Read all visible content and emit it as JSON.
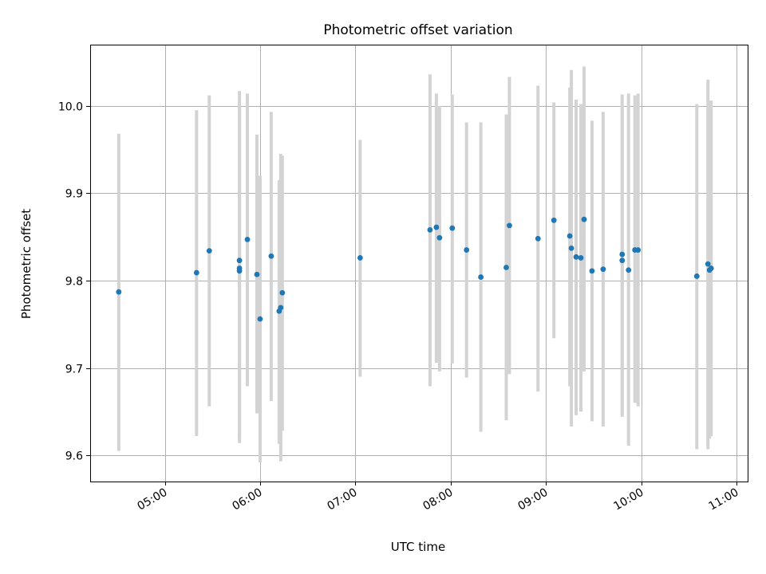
{
  "chart_data": {
    "type": "scatter",
    "title": "Photometric offset variation",
    "xlabel": "UTC time",
    "ylabel": "Photometric offset",
    "x_axis_type": "time",
    "xlim": [
      "04:13",
      "11:07"
    ],
    "ylim": [
      9.57,
      10.07
    ],
    "x_ticks": [
      "05:00",
      "06:00",
      "07:00",
      "08:00",
      "09:00",
      "10:00",
      "11:00"
    ],
    "y_ticks": [
      "9.6",
      "9.7",
      "9.8",
      "9.9",
      "10.0"
    ],
    "grid": true,
    "colors": {
      "points": "#1f77b4",
      "errorbars": "#d3d3d3",
      "grid": "#b0b0b0"
    },
    "series": [
      {
        "points": [
          {
            "x": "04:31",
            "y": 9.787,
            "lo": 9.605,
            "hi": 9.968
          },
          {
            "x": "05:20",
            "y": 9.809,
            "lo": 9.622,
            "hi": 9.995
          },
          {
            "x": "05:28",
            "y": 9.834,
            "lo": 9.656,
            "hi": 10.012
          },
          {
            "x": "05:47",
            "y": 9.823,
            "lo": 9.614,
            "hi": 10.017
          },
          {
            "x": "05:47",
            "y": 9.814,
            "lo": 9.62,
            "hi": 10.005
          },
          {
            "x": "05:47",
            "y": 9.811,
            "lo": 9.625,
            "hi": 9.998
          },
          {
            "x": "05:52",
            "y": 9.847,
            "lo": 9.679,
            "hi": 10.014
          },
          {
            "x": "05:58",
            "y": 9.807,
            "lo": 9.648,
            "hi": 9.967
          },
          {
            "x": "06:00",
            "y": 9.756,
            "lo": 9.592,
            "hi": 9.92
          },
          {
            "x": "06:07",
            "y": 9.828,
            "lo": 9.662,
            "hi": 9.993
          },
          {
            "x": "06:12",
            "y": 9.765,
            "lo": 9.613,
            "hi": 9.915
          },
          {
            "x": "06:13",
            "y": 9.769,
            "lo": 9.593,
            "hi": 9.945
          },
          {
            "x": "06:14",
            "y": 9.786,
            "lo": 9.628,
            "hi": 9.943
          },
          {
            "x": "07:03",
            "y": 9.826,
            "lo": 9.69,
            "hi": 9.961
          },
          {
            "x": "07:47",
            "y": 9.858,
            "lo": 9.679,
            "hi": 10.036
          },
          {
            "x": "07:51",
            "y": 9.861,
            "lo": 9.706,
            "hi": 10.014
          },
          {
            "x": "07:53",
            "y": 9.849,
            "lo": 9.696,
            "hi": 10.0
          },
          {
            "x": "08:01",
            "y": 9.86,
            "lo": 9.705,
            "hi": 10.013
          },
          {
            "x": "08:10",
            "y": 9.835,
            "lo": 9.689,
            "hi": 9.981
          },
          {
            "x": "08:19",
            "y": 9.804,
            "lo": 9.627,
            "hi": 9.981
          },
          {
            "x": "08:35",
            "y": 9.815,
            "lo": 9.64,
            "hi": 9.99
          },
          {
            "x": "08:37",
            "y": 9.863,
            "lo": 9.693,
            "hi": 10.033
          },
          {
            "x": "08:55",
            "y": 9.848,
            "lo": 9.673,
            "hi": 10.023
          },
          {
            "x": "09:05",
            "y": 9.869,
            "lo": 9.734,
            "hi": 10.004
          },
          {
            "x": "09:15",
            "y": 9.851,
            "lo": 9.679,
            "hi": 10.021
          },
          {
            "x": "09:16",
            "y": 9.837,
            "lo": 9.633,
            "hi": 10.041
          },
          {
            "x": "09:19",
            "y": 9.827,
            "lo": 9.646,
            "hi": 10.007
          },
          {
            "x": "09:22",
            "y": 9.826,
            "lo": 9.65,
            "hi": 10.002
          },
          {
            "x": "09:24",
            "y": 9.87,
            "lo": 9.696,
            "hi": 10.045
          },
          {
            "x": "09:29",
            "y": 9.811,
            "lo": 9.639,
            "hi": 9.983
          },
          {
            "x": "09:36",
            "y": 9.813,
            "lo": 9.633,
            "hi": 9.993
          },
          {
            "x": "09:48",
            "y": 9.83,
            "lo": 9.644,
            "hi": 10.013
          },
          {
            "x": "09:48",
            "y": 9.823,
            "lo": 9.646,
            "hi": 10.0
          },
          {
            "x": "09:52",
            "y": 9.812,
            "lo": 9.611,
            "hi": 10.014
          },
          {
            "x": "09:56",
            "y": 9.835,
            "lo": 9.66,
            "hi": 10.012
          },
          {
            "x": "09:58",
            "y": 9.835,
            "lo": 9.656,
            "hi": 10.014
          },
          {
            "x": "10:35",
            "y": 9.805,
            "lo": 9.607,
            "hi": 10.002
          },
          {
            "x": "10:42",
            "y": 9.819,
            "lo": 9.607,
            "hi": 10.03
          },
          {
            "x": "10:43",
            "y": 9.812,
            "lo": 9.619,
            "hi": 10.005
          },
          {
            "x": "10:44",
            "y": 9.814,
            "lo": 9.622,
            "hi": 10.006
          }
        ]
      }
    ]
  }
}
